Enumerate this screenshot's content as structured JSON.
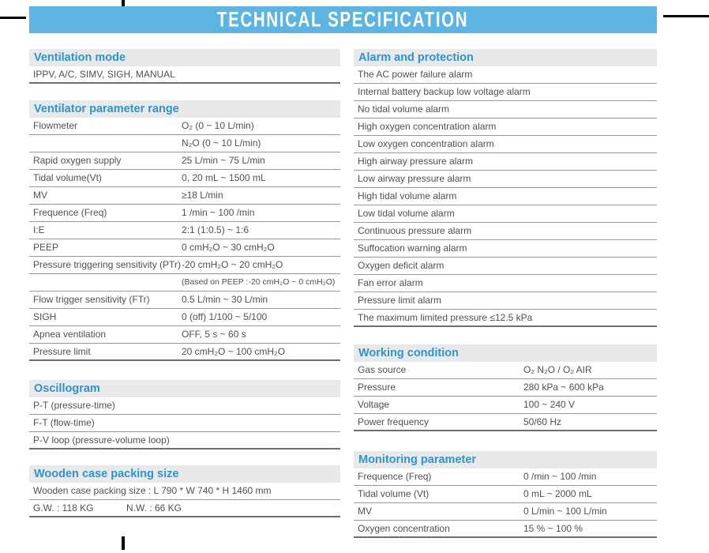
{
  "title": "TECHNICAL SPECIFICATION",
  "colors": {
    "header_bg": "#5bb4e2",
    "header_text": "#ffffff",
    "section_title": "#2e95cc",
    "section_bg": "#e8e9eb",
    "body_text": "#4f5052",
    "row_line": "#97999c",
    "end_line": "#6d6e71"
  },
  "left_sections": [
    {
      "title": "Ventilation mode",
      "rows": [
        {
          "text": "IPPV, A/C, SIMV, SIGH, MANUAL",
          "end": true
        }
      ]
    },
    {
      "title": "Ventilator parameter range",
      "rows": [
        {
          "label": "Flowmeter",
          "value": "O₂ (0 ~ 10 L/min)"
        },
        {
          "label": "",
          "value": "N₂O (0 ~ 10 L/min)"
        },
        {
          "label": "Rapid oxygen supply",
          "value": "25 L/min ~ 75 L/min"
        },
        {
          "label": "Tidal volume(Vt)",
          "value": "0, 20 mL ~ 1500 mL"
        },
        {
          "label": "MV",
          "value": "≥18 L/min"
        },
        {
          "label": "Frequence (Freq)",
          "value": "1 /min ~ 100 /min"
        },
        {
          "label": "I:E",
          "value": "2:1 (1:0.5) ~ 1:6"
        },
        {
          "label": "PEEP",
          "value": "0 cmH₂O ~ 30 cmH₂O"
        },
        {
          "label": "Pressure triggering sensitivity (PTr)",
          "value": "-20 cmH₂O ~ 20 cmH₂O"
        },
        {
          "label": "",
          "value": "(Based on PEEP :-20 cmH₂O ~ 0 cmH₂O)",
          "small": true
        },
        {
          "label": "Flow trigger sensitivity (FTr)",
          "value": "0.5 L/min ~ 30 L/min"
        },
        {
          "label": "SIGH",
          "value": "0 (off) 1/100 ~ 5/100"
        },
        {
          "label": "Apnea ventilation",
          "value": "OFF, 5 s ~ 60 s"
        },
        {
          "label": "Pressure limit",
          "value": "20 cmH₂O ~ 100 cmH₂O",
          "end": true
        }
      ]
    },
    {
      "title": "Oscillogram",
      "rows": [
        {
          "text": "P-T (pressure-time)"
        },
        {
          "text": "F-T (flow-time)"
        },
        {
          "text": "P-V loop (pressure-volume loop)",
          "end": true
        }
      ]
    },
    {
      "title": "Wooden case packing size",
      "rows": [
        {
          "text": "Wooden case packing size : L 790 * W 740 * H 1460 mm"
        },
        {
          "label": "G.W. : 118 KG",
          "value": "N.W. : 66 KG",
          "end": true
        }
      ]
    }
  ],
  "right_sections": [
    {
      "title": "Alarm and protection",
      "rows": [
        {
          "text": "The AC power failure alarm"
        },
        {
          "text": "Internal battery backup low voltage alarm"
        },
        {
          "text": "No tidal volume alarm"
        },
        {
          "text": "High oxygen concentration alarm"
        },
        {
          "text": "Low oxygen concentration alarm"
        },
        {
          "text": "High airway pressure alarm"
        },
        {
          "text": "Low airway pressure alarm"
        },
        {
          "text": "High tidal volume alarm"
        },
        {
          "text": "Low tidal volume alarm"
        },
        {
          "text": "Continuous pressure alarm"
        },
        {
          "text": "Suffocation warning alarm"
        },
        {
          "text": "Oxygen deficit alarm"
        },
        {
          "text": "Fan error alarm"
        },
        {
          "text": "Pressure limit alarm"
        },
        {
          "text": "The maximum limited pressure ≤12.5 kPa",
          "end": true
        }
      ]
    },
    {
      "title": "Working condition",
      "rows": [
        {
          "label": "Gas source",
          "value": "O₂ N₂O / O₂ AIR"
        },
        {
          "label": "Pressure",
          "value": "280 kPa ~ 600 kPa"
        },
        {
          "label": "Voltage",
          "value": "100 ~ 240 V"
        },
        {
          "label": "Power frequency",
          "value": "50/60 Hz",
          "end": true
        }
      ]
    },
    {
      "title": "Monitoring parameter",
      "rows": [
        {
          "label": "Frequence (Freq)",
          "value": "0 /min ~ 100 /min"
        },
        {
          "label": "Tidal volume (Vt)",
          "value": "0 mL ~ 2000 mL"
        },
        {
          "label": "MV",
          "value": "0 L/min ~ 100 L/min"
        },
        {
          "label": "Oxygen concentration",
          "value": "15 % ~ 100 %",
          "end": true
        }
      ]
    }
  ]
}
